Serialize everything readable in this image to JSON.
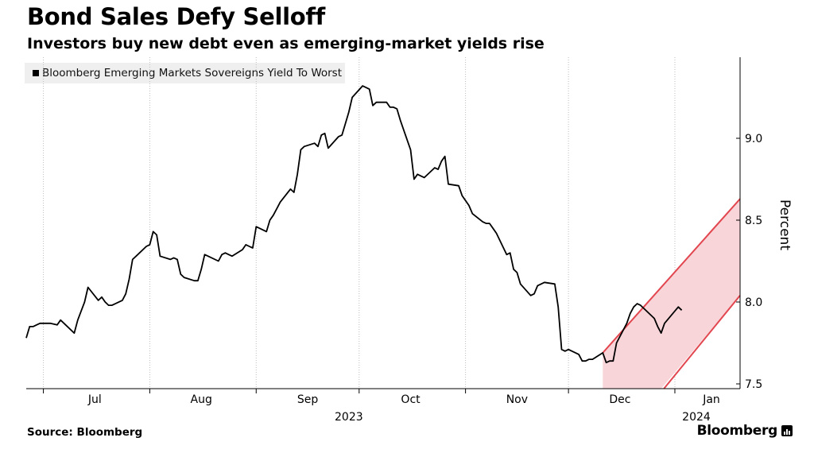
{
  "title": "Bond Sales Defy Selloff",
  "subtitle": "Investors buy new debt even as emerging-market yields rise",
  "source": "Source: Bloomberg",
  "brand": "Bloomberg",
  "chart_data": {
    "type": "line",
    "ylabel": "Percent",
    "ylim": [
      7.5,
      9.45
    ],
    "yticks": [
      7.5,
      8.0,
      8.5,
      9.0
    ],
    "ytick_labels": [
      "7.5",
      "8.0",
      "8.5",
      "9.0"
    ],
    "y_axis_position": "right",
    "grid": "vertical dotted",
    "x_range": [
      "2023-06-26",
      "2024-01-20"
    ],
    "month_ticks": [
      {
        "date": "2023-07-01",
        "label": "Jul"
      },
      {
        "date": "2023-08-01",
        "label": "Aug"
      },
      {
        "date": "2023-09-01",
        "label": "Sep"
      },
      {
        "date": "2023-10-01",
        "label": "Oct"
      },
      {
        "date": "2023-11-01",
        "label": "Nov"
      },
      {
        "date": "2023-12-01",
        "label": "Dec"
      },
      {
        "date": "2024-01-01",
        "label": "Jan"
      }
    ],
    "year_labels": [
      {
        "date": "2023-09-28",
        "label": "2023"
      },
      {
        "date": "2024-01-01",
        "label": "2024"
      }
    ],
    "legend": "top-left",
    "series": [
      {
        "name": "Bloomberg Emerging Markets Sovereigns Yield To Worst",
        "color": "#000000",
        "points": [
          [
            "2023-06-26",
            7.78
          ],
          [
            "2023-06-27",
            7.85
          ],
          [
            "2023-06-28",
            7.85
          ],
          [
            "2023-06-29",
            7.86
          ],
          [
            "2023-06-30",
            7.87
          ],
          [
            "2023-07-03",
            7.87
          ],
          [
            "2023-07-05",
            7.86
          ],
          [
            "2023-07-06",
            7.89
          ],
          [
            "2023-07-07",
            7.87
          ],
          [
            "2023-07-10",
            7.81
          ],
          [
            "2023-07-11",
            7.89
          ],
          [
            "2023-07-13",
            8.0
          ],
          [
            "2023-07-14",
            8.09
          ],
          [
            "2023-07-17",
            8.01
          ],
          [
            "2023-07-18",
            8.03
          ],
          [
            "2023-07-19",
            8.0
          ],
          [
            "2023-07-20",
            7.98
          ],
          [
            "2023-07-21",
            7.98
          ],
          [
            "2023-07-24",
            8.01
          ],
          [
            "2023-07-25",
            8.05
          ],
          [
            "2023-07-26",
            8.14
          ],
          [
            "2023-07-27",
            8.26
          ],
          [
            "2023-07-28",
            8.28
          ],
          [
            "2023-07-31",
            8.34
          ],
          [
            "2023-08-01",
            8.35
          ],
          [
            "2023-08-02",
            8.43
          ],
          [
            "2023-08-03",
            8.41
          ],
          [
            "2023-08-04",
            8.28
          ],
          [
            "2023-08-07",
            8.26
          ],
          [
            "2023-08-08",
            8.27
          ],
          [
            "2023-08-09",
            8.26
          ],
          [
            "2023-08-10",
            8.17
          ],
          [
            "2023-08-11",
            8.15
          ],
          [
            "2023-08-14",
            8.13
          ],
          [
            "2023-08-15",
            8.13
          ],
          [
            "2023-08-16",
            8.2
          ],
          [
            "2023-08-17",
            8.29
          ],
          [
            "2023-08-18",
            8.28
          ],
          [
            "2023-08-21",
            8.25
          ],
          [
            "2023-08-22",
            8.29
          ],
          [
            "2023-08-23",
            8.3
          ],
          [
            "2023-08-24",
            8.29
          ],
          [
            "2023-08-25",
            8.28
          ],
          [
            "2023-08-28",
            8.32
          ],
          [
            "2023-08-29",
            8.35
          ],
          [
            "2023-08-30",
            8.34
          ],
          [
            "2023-08-31",
            8.33
          ],
          [
            "2023-09-01",
            8.46
          ],
          [
            "2023-09-04",
            8.43
          ],
          [
            "2023-09-05",
            8.5
          ],
          [
            "2023-09-06",
            8.53
          ],
          [
            "2023-09-07",
            8.57
          ],
          [
            "2023-09-08",
            8.61
          ],
          [
            "2023-09-11",
            8.69
          ],
          [
            "2023-09-12",
            8.67
          ],
          [
            "2023-09-13",
            8.78
          ],
          [
            "2023-09-14",
            8.93
          ],
          [
            "2023-09-15",
            8.95
          ],
          [
            "2023-09-18",
            8.97
          ],
          [
            "2023-09-19",
            8.95
          ],
          [
            "2023-09-20",
            9.02
          ],
          [
            "2023-09-21",
            9.03
          ],
          [
            "2023-09-22",
            8.94
          ],
          [
            "2023-09-25",
            9.01
          ],
          [
            "2023-09-26",
            9.02
          ],
          [
            "2023-09-27",
            9.09
          ],
          [
            "2023-09-28",
            9.16
          ],
          [
            "2023-09-29",
            9.25
          ],
          [
            "2023-10-02",
            9.32
          ],
          [
            "2023-10-03",
            9.31
          ],
          [
            "2023-10-04",
            9.3
          ],
          [
            "2023-10-05",
            9.2
          ],
          [
            "2023-10-06",
            9.22
          ],
          [
            "2023-10-09",
            9.22
          ],
          [
            "2023-10-10",
            9.19
          ],
          [
            "2023-10-11",
            9.19
          ],
          [
            "2023-10-12",
            9.18
          ],
          [
            "2023-10-13",
            9.11
          ],
          [
            "2023-10-16",
            8.93
          ],
          [
            "2023-10-17",
            8.75
          ],
          [
            "2023-10-18",
            8.78
          ],
          [
            "2023-10-19",
            8.77
          ],
          [
            "2023-10-20",
            8.76
          ],
          [
            "2023-10-23",
            8.82
          ],
          [
            "2023-10-24",
            8.81
          ],
          [
            "2023-10-25",
            8.86
          ],
          [
            "2023-10-26",
            8.89
          ],
          [
            "2023-10-27",
            8.72
          ],
          [
            "2023-10-30",
            8.71
          ],
          [
            "2023-10-31",
            8.65
          ],
          [
            "2023-11-01",
            8.62
          ],
          [
            "2023-11-02",
            8.59
          ],
          [
            "2023-11-03",
            8.54
          ],
          [
            "2023-11-06",
            8.49
          ],
          [
            "2023-11-07",
            8.48
          ],
          [
            "2023-11-08",
            8.48
          ],
          [
            "2023-11-09",
            8.45
          ],
          [
            "2023-11-10",
            8.42
          ],
          [
            "2023-11-13",
            8.29
          ],
          [
            "2023-11-14",
            8.3
          ],
          [
            "2023-11-15",
            8.2
          ],
          [
            "2023-11-16",
            8.18
          ],
          [
            "2023-11-17",
            8.11
          ],
          [
            "2023-11-20",
            8.04
          ],
          [
            "2023-11-21",
            8.05
          ],
          [
            "2023-11-22",
            8.1
          ],
          [
            "2023-11-24",
            8.12
          ],
          [
            "2023-11-27",
            8.11
          ],
          [
            "2023-11-28",
            7.97
          ],
          [
            "2023-11-29",
            7.71
          ],
          [
            "2023-11-30",
            7.7
          ],
          [
            "2023-12-01",
            7.71
          ],
          [
            "2023-12-04",
            7.68
          ],
          [
            "2023-12-05",
            7.64
          ],
          [
            "2023-12-06",
            7.64
          ],
          [
            "2023-12-07",
            7.65
          ],
          [
            "2023-12-08",
            7.65
          ],
          [
            "2023-12-11",
            7.69
          ],
          [
            "2023-12-12",
            7.63
          ],
          [
            "2023-12-13",
            7.64
          ],
          [
            "2023-12-14",
            7.64
          ],
          [
            "2023-12-15",
            7.75
          ],
          [
            "2023-12-18",
            7.87
          ],
          [
            "2023-12-19",
            7.93
          ],
          [
            "2023-12-20",
            7.97
          ],
          [
            "2023-12-21",
            7.99
          ],
          [
            "2023-12-22",
            7.98
          ],
          [
            "2023-12-26",
            7.9
          ],
          [
            "2023-12-27",
            7.85
          ],
          [
            "2023-12-28",
            7.81
          ],
          [
            "2023-12-29",
            7.87
          ],
          [
            "2024-01-02",
            7.97
          ],
          [
            "2024-01-03",
            7.95
          ]
        ]
      }
    ],
    "channel": {
      "color": "#e2464f",
      "fill": "#f8d5d9",
      "upper": [
        [
          "2023-12-11",
          7.69
        ],
        [
          "2024-01-20",
          8.63
        ]
      ],
      "lower": [
        [
          "2023-12-28",
          7.45
        ],
        [
          "2024-01-20",
          8.04
        ]
      ],
      "shade_bottom": 7.45,
      "shade_start": "2023-12-11"
    }
  }
}
